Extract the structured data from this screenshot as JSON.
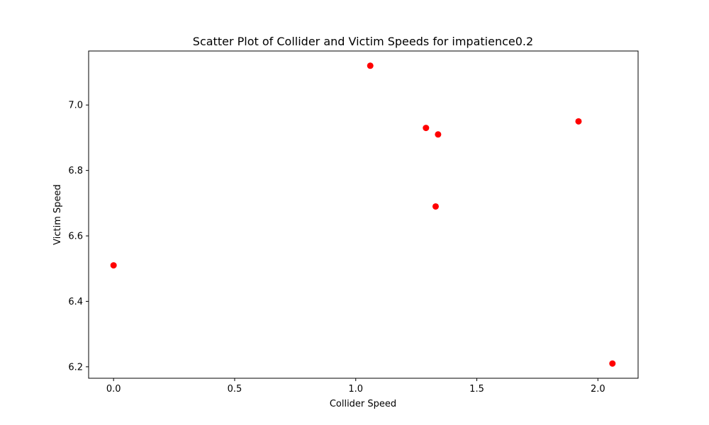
{
  "chart_data": {
    "type": "scatter",
    "title": "Scatter Plot of Collider and Victim Speeds for impatience0.2",
    "xlabel": "Collider Speed",
    "ylabel": "Victim Speed",
    "xlim": [
      -0.103,
      2.166
    ],
    "ylim": [
      6.165,
      7.165
    ],
    "xticks": [
      0.0,
      0.5,
      1.0,
      1.5,
      2.0
    ],
    "xtick_labels": [
      "0.0",
      "0.5",
      "1.0",
      "1.5",
      "2.0"
    ],
    "yticks": [
      6.2,
      6.4,
      6.6,
      6.8,
      7.0
    ],
    "ytick_labels": [
      "6.2",
      "6.4",
      "6.6",
      "6.8",
      "7.0"
    ],
    "grid": false,
    "marker_color": "#ff0000",
    "points": [
      {
        "x": 0.0,
        "y": 6.51
      },
      {
        "x": 1.06,
        "y": 7.12
      },
      {
        "x": 1.29,
        "y": 6.93
      },
      {
        "x": 1.34,
        "y": 6.91
      },
      {
        "x": 1.33,
        "y": 6.69
      },
      {
        "x": 1.92,
        "y": 6.95
      },
      {
        "x": 2.06,
        "y": 6.21
      }
    ]
  }
}
